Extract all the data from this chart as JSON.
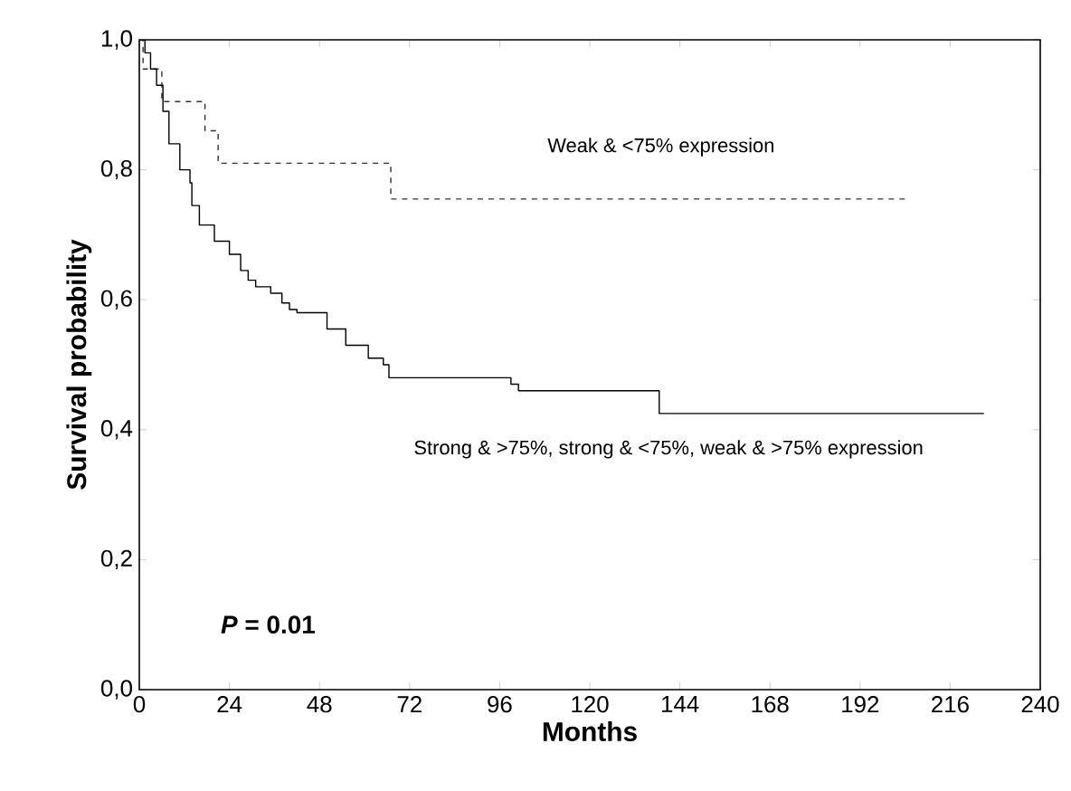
{
  "chart_data": {
    "type": "step",
    "xlabel": "Months",
    "ylabel": "Survival probability",
    "xlim": [
      0,
      240
    ],
    "ylim": [
      0,
      1
    ],
    "xticks": [
      0,
      24,
      48,
      72,
      96,
      120,
      144,
      168,
      192,
      216,
      240
    ],
    "yticks": [
      {
        "value": 0,
        "label": "0,0"
      },
      {
        "value": 0.2,
        "label": "0,2"
      },
      {
        "value": 0.4,
        "label": "0,4"
      },
      {
        "value": 0.6,
        "label": "0,6"
      },
      {
        "value": 0.8,
        "label": "0,8"
      },
      {
        "value": 1,
        "label": "1,0"
      }
    ],
    "grid": false,
    "legend": false,
    "marker": "none",
    "series": [
      {
        "name": "Weak & <75% expression",
        "color": "#333333",
        "line_style": "dashed",
        "x": [
          0,
          1,
          6,
          17.5,
          21,
          67,
          205
        ],
        "values": [
          1.0,
          0.955,
          0.905,
          0.86,
          0.81,
          0.755,
          0.755
        ]
      },
      {
        "name": "Strong & >75%, strong & <75%, weak & >75% expression",
        "color": "#000000",
        "line_style": "solid",
        "x": [
          0,
          1.5,
          3,
          4.6,
          6.3,
          7.9,
          10.8,
          13.5,
          14,
          16,
          20,
          24,
          27,
          29,
          31,
          35,
          38,
          40,
          42,
          50,
          55,
          61,
          65,
          66.5,
          99,
          101,
          138.5,
          225
        ],
        "values": [
          1.0,
          0.98,
          0.955,
          0.93,
          0.89,
          0.84,
          0.8,
          0.78,
          0.745,
          0.715,
          0.69,
          0.67,
          0.645,
          0.63,
          0.62,
          0.61,
          0.595,
          0.585,
          0.58,
          0.555,
          0.53,
          0.51,
          0.5,
          0.48,
          0.47,
          0.46,
          0.425,
          0.425
        ]
      }
    ],
    "annotations": [
      "*P* = 0.01"
    ]
  }
}
